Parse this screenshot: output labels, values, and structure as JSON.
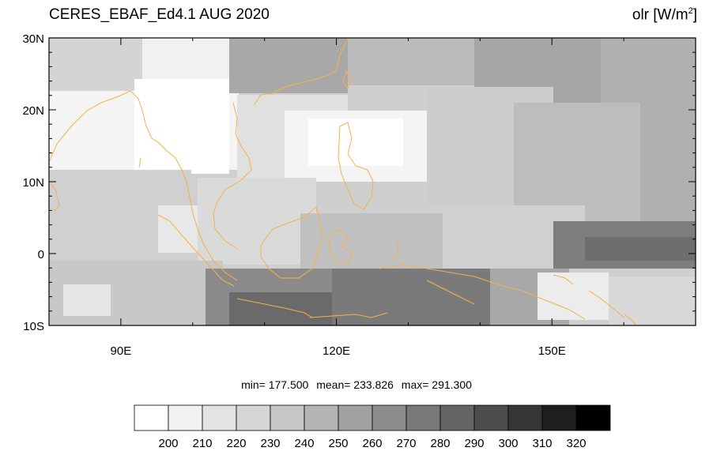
{
  "title": {
    "dataset": "CERES_EBAF_Ed4.1 AUG 2020",
    "variable": "olr [W/m",
    "variable_exp": "2",
    "variable_close": "]"
  },
  "stats": {
    "min": "min= 177.500",
    "mean": "mean= 233.826",
    "max": "max= 291.300"
  },
  "axes": {
    "lat_labels": [
      "30N",
      "20N",
      "10N",
      "0",
      "10S"
    ],
    "lat_values": [
      30,
      20,
      10,
      0,
      -10
    ],
    "lon_labels": [
      "90E",
      "120E",
      "150E"
    ],
    "lon_values": [
      90,
      120,
      150
    ],
    "lon_range": [
      80,
      170
    ],
    "lat_range": [
      -10,
      30
    ]
  },
  "colorbar": {
    "levels": [
      "200",
      "210",
      "220",
      "230",
      "240",
      "250",
      "260",
      "270",
      "280",
      "290",
      "300",
      "310",
      "320"
    ],
    "colors": [
      "#ffffff",
      "#f1f1f1",
      "#e3e3e3",
      "#d6d6d6",
      "#c6c6c6",
      "#b4b4b4",
      "#a0a0a0",
      "#8c8c8c",
      "#787878",
      "#646464",
      "#4c4c4c",
      "#363636",
      "#1e1e1e",
      "#000000"
    ]
  },
  "coastline_color": "#f5b14a"
}
